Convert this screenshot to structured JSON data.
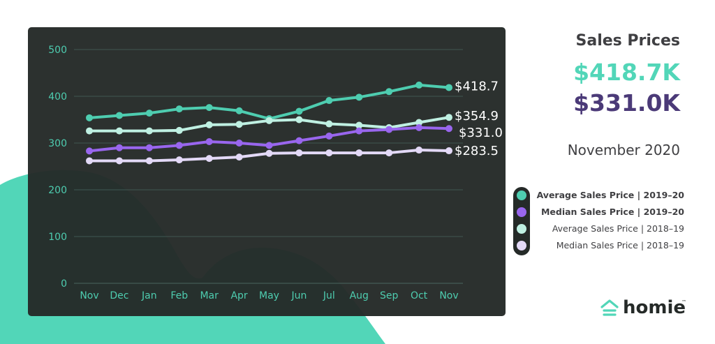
{
  "header": {
    "title": "Sales Prices",
    "average_value": "$418.7K",
    "median_value": "$331.0K",
    "period": "November 2020"
  },
  "legend": [
    {
      "label": "Average Sales Price  |  2019–20",
      "color": "#4ecdb0",
      "bold": true
    },
    {
      "label": "Median Sales Price  |  2019–20",
      "color": "#9966ee",
      "bold": true
    },
    {
      "label": "Average Sales Price  |  2018–19",
      "color": "#bff0e2",
      "bold": false
    },
    {
      "label": "Median Sales Price  |  2018–19",
      "color": "#e3d9f7",
      "bold": false
    }
  ],
  "brand": {
    "name": "homie",
    "trademark": "™",
    "icon": "house-icon",
    "color": "#52d6b8"
  },
  "colors": {
    "accent_teal": "#52d6b8",
    "accent_purple": "#4b3a78",
    "panel": "#252a28",
    "grid": "#3f5752"
  },
  "chart_data": {
    "type": "line",
    "categories": [
      "Nov",
      "Dec",
      "Jan",
      "Feb",
      "Mar",
      "Apr",
      "May",
      "Jun",
      "Jul",
      "Aug",
      "Sep",
      "Oct",
      "Nov"
    ],
    "ylim": [
      0,
      500
    ],
    "yticks": [
      0,
      100,
      200,
      300,
      400,
      500
    ],
    "grid": true,
    "legend_position": "right",
    "series": [
      {
        "name": "Average Sales Price | 2019–20",
        "color": "#4ecdb0",
        "end_label": "$418.7",
        "values": [
          354,
          359,
          364,
          373,
          376,
          369,
          352,
          368,
          391,
          398,
          410,
          424,
          418.7
        ]
      },
      {
        "name": "Average Sales Price | 2018–19",
        "color": "#bff0e2",
        "end_label": "$354.9",
        "values": [
          326,
          326,
          326,
          327,
          339,
          340,
          348,
          350,
          341,
          338,
          333,
          344,
          354.9
        ]
      },
      {
        "name": "Median Sales Price | 2019–20",
        "color": "#9966ee",
        "end_label": "$331.0",
        "values": [
          283,
          290,
          290,
          295,
          303,
          300,
          295,
          305,
          315,
          326,
          329,
          333,
          331.0
        ]
      },
      {
        "name": "Median Sales Price | 2018–19",
        "color": "#e3d9f7",
        "end_label": "$283.5",
        "values": [
          262,
          262,
          262,
          264,
          267,
          270,
          278,
          279,
          279,
          279,
          279,
          285,
          283.5
        ]
      }
    ]
  }
}
